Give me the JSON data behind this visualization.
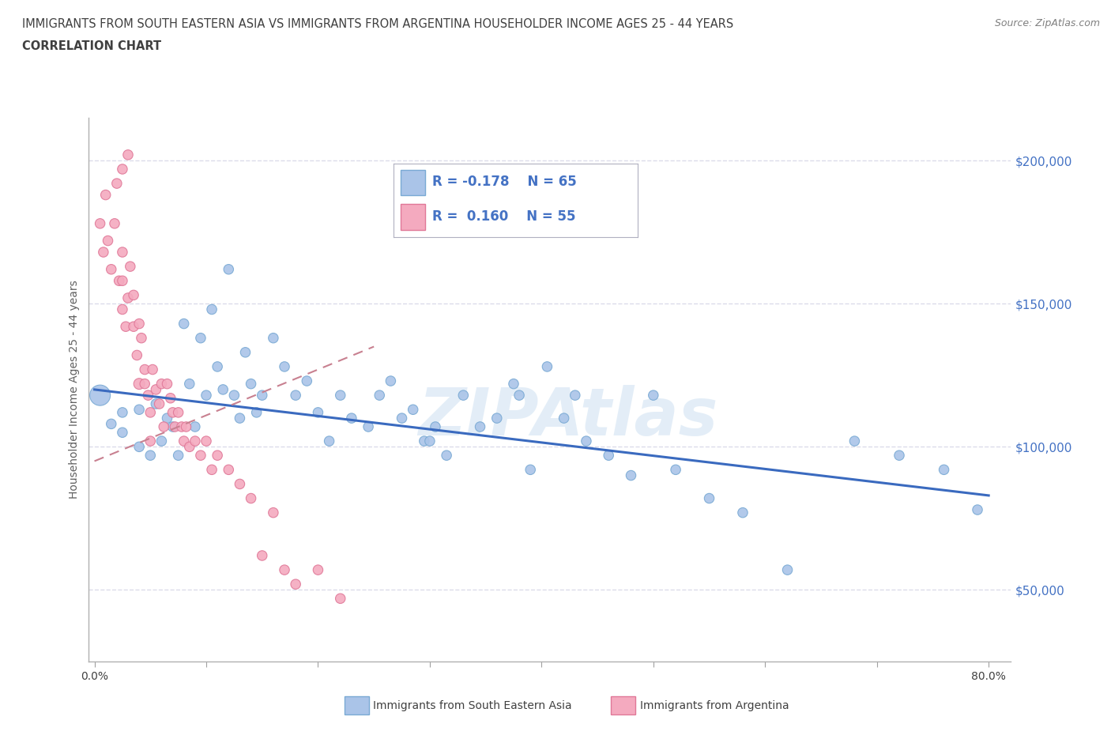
{
  "title_line1": "IMMIGRANTS FROM SOUTH EASTERN ASIA VS IMMIGRANTS FROM ARGENTINA HOUSEHOLDER INCOME AGES 25 - 44 YEARS",
  "title_line2": "CORRELATION CHART",
  "source_text": "Source: ZipAtlas.com",
  "ylabel": "Householder Income Ages 25 - 44 years",
  "xlim": [
    -0.005,
    0.82
  ],
  "ylim": [
    25000,
    215000
  ],
  "xticks": [
    0.0,
    0.1,
    0.2,
    0.3,
    0.4,
    0.5,
    0.6,
    0.7,
    0.8
  ],
  "xticklabels": [
    "0.0%",
    "",
    "",
    "",
    "",
    "",
    "",
    "",
    "80.0%"
  ],
  "ytick_positions": [
    50000,
    100000,
    150000,
    200000
  ],
  "ytick_labels": [
    "$50,000",
    "$100,000",
    "$150,000",
    "$200,000"
  ],
  "blue_color": "#aac4e8",
  "blue_edge_color": "#7aaad4",
  "pink_color": "#f4aabf",
  "pink_edge_color": "#e07898",
  "blue_line_color": "#3a6abf",
  "pink_line_color": "#e07898",
  "legend_label1": "Immigrants from South Eastern Asia",
  "legend_label2": "Immigrants from Argentina",
  "watermark": "ZIPAtlas",
  "blue_R": -0.178,
  "blue_N": 65,
  "pink_R": 0.16,
  "pink_N": 55,
  "blue_x": [
    0.005,
    0.015,
    0.025,
    0.025,
    0.04,
    0.04,
    0.05,
    0.055,
    0.06,
    0.065,
    0.07,
    0.075,
    0.08,
    0.085,
    0.09,
    0.095,
    0.1,
    0.105,
    0.11,
    0.115,
    0.12,
    0.125,
    0.13,
    0.135,
    0.14,
    0.145,
    0.15,
    0.16,
    0.17,
    0.18,
    0.19,
    0.2,
    0.21,
    0.22,
    0.23,
    0.245,
    0.255,
    0.265,
    0.275,
    0.285,
    0.295,
    0.305,
    0.315,
    0.33,
    0.345,
    0.36,
    0.375,
    0.39,
    0.405,
    0.42,
    0.44,
    0.46,
    0.48,
    0.5,
    0.52,
    0.55,
    0.58,
    0.62,
    0.68,
    0.72,
    0.76,
    0.79,
    0.38,
    0.43,
    0.3
  ],
  "blue_y": [
    118000,
    108000,
    112000,
    105000,
    113000,
    100000,
    97000,
    115000,
    102000,
    110000,
    107000,
    97000,
    143000,
    122000,
    107000,
    138000,
    118000,
    148000,
    128000,
    120000,
    162000,
    118000,
    110000,
    133000,
    122000,
    112000,
    118000,
    138000,
    128000,
    118000,
    123000,
    112000,
    102000,
    118000,
    110000,
    107000,
    118000,
    123000,
    110000,
    113000,
    102000,
    107000,
    97000,
    118000,
    107000,
    110000,
    122000,
    92000,
    128000,
    110000,
    102000,
    97000,
    90000,
    118000,
    92000,
    82000,
    77000,
    57000,
    102000,
    97000,
    92000,
    78000,
    118000,
    118000,
    102000
  ],
  "blue_size": [
    350,
    80,
    80,
    80,
    80,
    80,
    80,
    80,
    80,
    80,
    80,
    80,
    80,
    80,
    80,
    80,
    80,
    80,
    80,
    80,
    80,
    80,
    80,
    80,
    80,
    80,
    80,
    80,
    80,
    80,
    80,
    80,
    80,
    80,
    80,
    80,
    80,
    80,
    80,
    80,
    80,
    80,
    80,
    80,
    80,
    80,
    80,
    80,
    80,
    80,
    80,
    80,
    80,
    80,
    80,
    80,
    80,
    80,
    80,
    80,
    80,
    80,
    80,
    80,
    80
  ],
  "pink_x": [
    0.005,
    0.008,
    0.01,
    0.012,
    0.015,
    0.018,
    0.02,
    0.022,
    0.025,
    0.025,
    0.025,
    0.028,
    0.03,
    0.032,
    0.035,
    0.035,
    0.038,
    0.04,
    0.04,
    0.042,
    0.045,
    0.045,
    0.048,
    0.05,
    0.05,
    0.052,
    0.055,
    0.058,
    0.06,
    0.062,
    0.065,
    0.068,
    0.07,
    0.072,
    0.075,
    0.078,
    0.08,
    0.082,
    0.085,
    0.09,
    0.095,
    0.1,
    0.105,
    0.11,
    0.12,
    0.13,
    0.14,
    0.15,
    0.16,
    0.17,
    0.18,
    0.2,
    0.22,
    0.025,
    0.03
  ],
  "pink_y": [
    178000,
    168000,
    188000,
    172000,
    162000,
    178000,
    192000,
    158000,
    168000,
    148000,
    158000,
    142000,
    152000,
    163000,
    142000,
    153000,
    132000,
    143000,
    122000,
    138000,
    127000,
    122000,
    118000,
    112000,
    102000,
    127000,
    120000,
    115000,
    122000,
    107000,
    122000,
    117000,
    112000,
    107000,
    112000,
    107000,
    102000,
    107000,
    100000,
    102000,
    97000,
    102000,
    92000,
    97000,
    92000,
    87000,
    82000,
    62000,
    77000,
    57000,
    52000,
    57000,
    47000,
    197000,
    202000
  ],
  "pink_size": [
    80,
    80,
    80,
    80,
    80,
    80,
    80,
    80,
    80,
    80,
    80,
    80,
    80,
    80,
    80,
    80,
    80,
    80,
    100,
    80,
    80,
    80,
    80,
    80,
    80,
    80,
    80,
    80,
    80,
    80,
    80,
    80,
    80,
    80,
    80,
    80,
    80,
    80,
    80,
    80,
    80,
    80,
    80,
    80,
    80,
    80,
    80,
    80,
    80,
    80,
    80,
    80,
    80,
    80,
    80
  ],
  "blue_trend_x": [
    0.0,
    0.8
  ],
  "blue_trend_y": [
    120000,
    83000
  ],
  "pink_trend_x": [
    0.0,
    0.25
  ],
  "pink_trend_y": [
    95000,
    135000
  ],
  "background_color": "#ffffff",
  "grid_color": "#d8d8e8",
  "title_color": "#404040",
  "axis_label_color": "#606060",
  "ytick_color": "#4472c4",
  "watermark_color": "#c8ddf0",
  "watermark_alpha": 0.5
}
